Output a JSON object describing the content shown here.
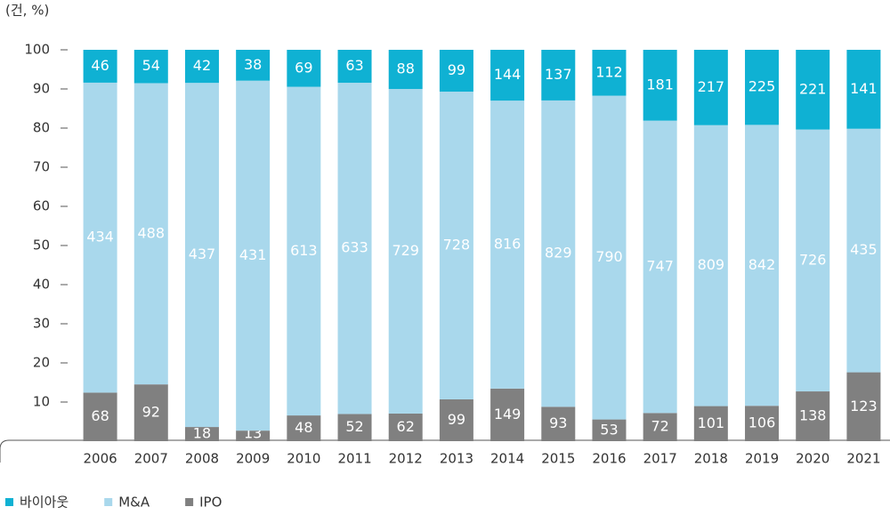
{
  "chart_data": {
    "type": "bar",
    "stacked": "percent",
    "unit_label": "(건, %)",
    "categories": [
      "2006",
      "2007",
      "2008",
      "2009",
      "2010",
      "2011",
      "2012",
      "2013",
      "2014",
      "2015",
      "2016",
      "2017",
      "2018",
      "2019",
      "2020",
      "2021"
    ],
    "series": [
      {
        "name": "바이아웃",
        "color": "#0fb1d3",
        "values": [
          46,
          54,
          42,
          38,
          69,
          63,
          88,
          99,
          144,
          137,
          112,
          181,
          217,
          225,
          221,
          141
        ]
      },
      {
        "name": "M&A",
        "color": "#a9d8ec",
        "values": [
          434,
          488,
          437,
          431,
          613,
          633,
          729,
          728,
          816,
          829,
          790,
          747,
          809,
          842,
          726,
          435
        ]
      },
      {
        "name": "IPO",
        "color": "#808080",
        "values": [
          68,
          92,
          18,
          13,
          48,
          52,
          62,
          99,
          149,
          93,
          53,
          72,
          101,
          106,
          138,
          123
        ]
      }
    ],
    "ylim": [
      0,
      100
    ],
    "yticks": [
      10,
      20,
      30,
      40,
      50,
      60,
      70,
      80,
      90,
      100
    ],
    "legend": "bottom-left"
  }
}
